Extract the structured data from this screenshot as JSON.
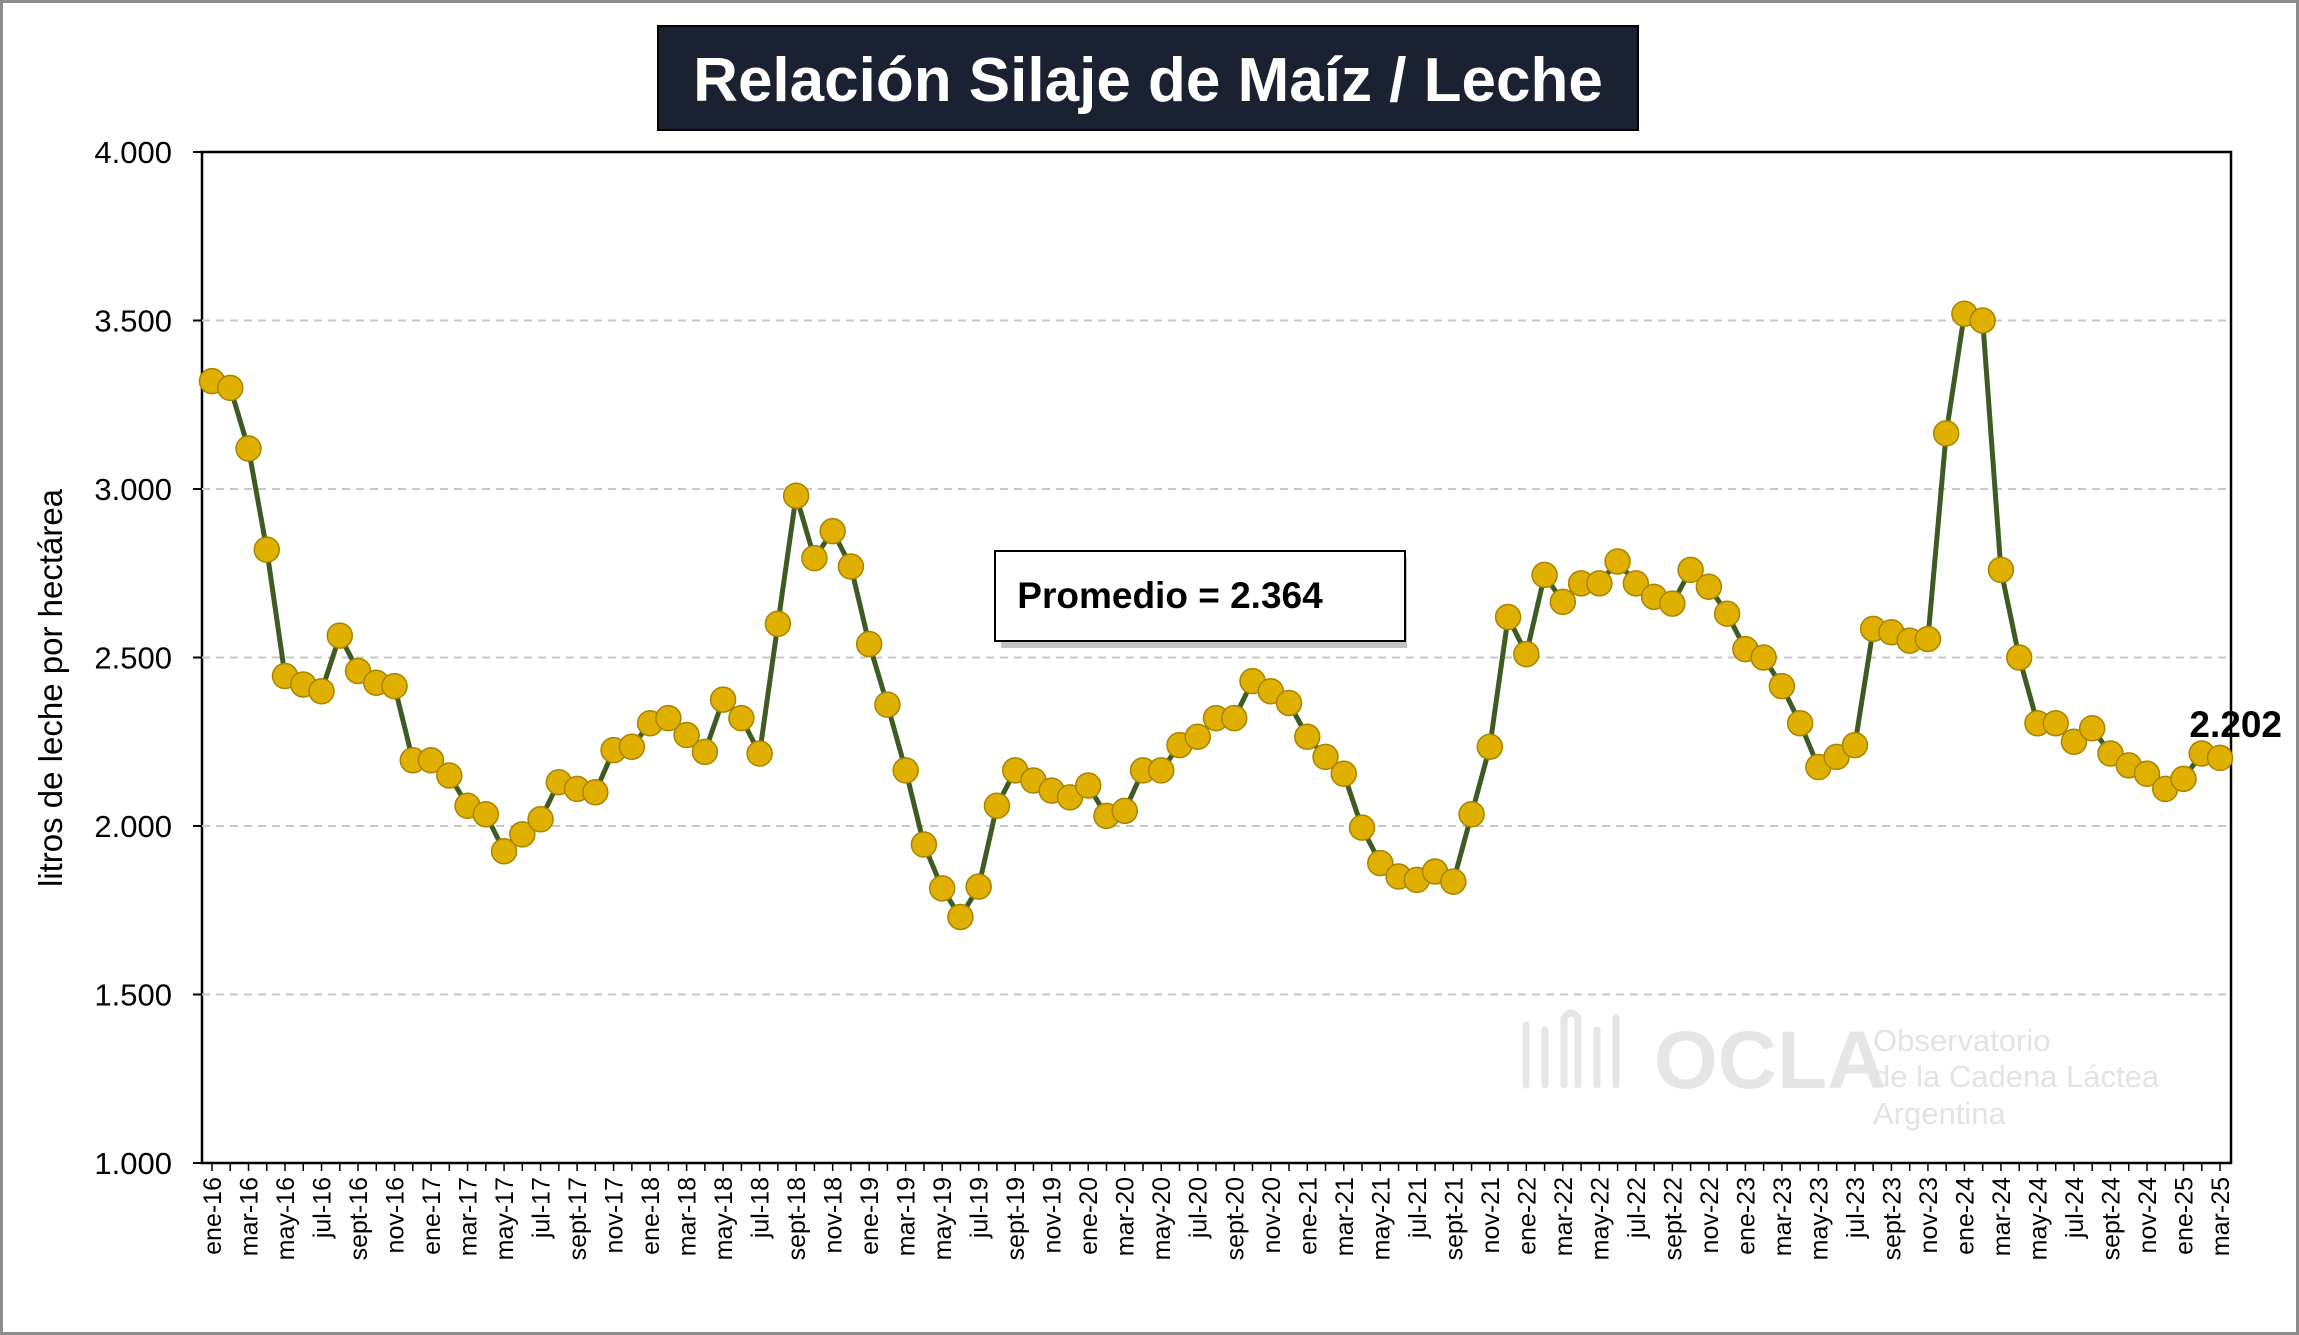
{
  "chart_data": {
    "type": "line",
    "title": "Relación Silaje de Maíz / Leche",
    "ylabel": "litros de leche por hectárea",
    "ylim": [
      1000,
      4000
    ],
    "yticks": [
      1000,
      1500,
      2000,
      2500,
      3000,
      3500,
      4000
    ],
    "ytick_labels": [
      "1.000",
      "1.500",
      "2.000",
      "2.500",
      "3.000",
      "3.500",
      "4.000"
    ],
    "grid": "horizontal dashed",
    "line_color": "#3d5c22",
    "marker_color": "#e0b000",
    "x": [
      "ene-16",
      "feb-16",
      "mar-16",
      "abr-16",
      "may-16",
      "jun-16",
      "jul-16",
      "ago-16",
      "sept-16",
      "oct-16",
      "nov-16",
      "dic-16",
      "ene-17",
      "feb-17",
      "mar-17",
      "abr-17",
      "may-17",
      "jun-17",
      "jul-17",
      "ago-17",
      "sept-17",
      "oct-17",
      "nov-17",
      "dic-17",
      "ene-18",
      "feb-18",
      "mar-18",
      "abr-18",
      "may-18",
      "jun-18",
      "jul-18",
      "ago-18",
      "sept-18",
      "oct-18",
      "nov-18",
      "dic-18",
      "ene-19",
      "feb-19",
      "mar-19",
      "abr-19",
      "may-19",
      "jun-19",
      "jul-19",
      "ago-19",
      "sept-19",
      "oct-19",
      "nov-19",
      "dic-19",
      "ene-20",
      "feb-20",
      "mar-20",
      "abr-20",
      "may-20",
      "jun-20",
      "jul-20",
      "ago-20",
      "sept-20",
      "oct-20",
      "nov-20",
      "dic-20",
      "ene-21",
      "feb-21",
      "mar-21",
      "abr-21",
      "may-21",
      "jun-21",
      "jul-21",
      "ago-21",
      "sept-21",
      "oct-21",
      "nov-21",
      "dic-21",
      "ene-22",
      "feb-22",
      "mar-22",
      "abr-22",
      "may-22",
      "jun-22",
      "jul-22",
      "ago-22",
      "sept-22",
      "oct-22",
      "nov-22",
      "dic-22",
      "ene-23",
      "feb-23",
      "mar-23",
      "abr-23",
      "may-23",
      "jun-23",
      "jul-23",
      "ago-23",
      "sept-23",
      "oct-23",
      "nov-23",
      "dic-23",
      "ene-24",
      "feb-24",
      "mar-24",
      "abr-24",
      "may-24",
      "jun-24",
      "jul-24",
      "ago-24",
      "sept-24",
      "oct-24",
      "nov-24",
      "dic-24",
      "ene-25",
      "feb-25",
      "mar-25"
    ],
    "xtick_labels_shown": [
      "ene-16",
      "mar-16",
      "may-16",
      "jul-16",
      "sept-16",
      "nov-16",
      "ene-17",
      "mar-17",
      "may-17",
      "jul-17",
      "sept-17",
      "nov-17",
      "ene-18",
      "mar-18",
      "may-18",
      "jul-18",
      "sept-18",
      "nov-18",
      "ene-19",
      "mar-19",
      "may-19",
      "jul-19",
      "sept-19",
      "nov-19",
      "ene-20",
      "mar-20",
      "may-20",
      "jul-20",
      "sept-20",
      "nov-20",
      "ene-21",
      "mar-21",
      "may-21",
      "jul-21",
      "sept-21",
      "nov-21",
      "ene-22",
      "mar-22",
      "may-22",
      "jul-22",
      "sept-22",
      "nov-22",
      "ene-23",
      "mar-23",
      "may-23",
      "jul-23",
      "sept-23",
      "nov-23",
      "ene-24",
      "mar-24",
      "may-24",
      "jul-24",
      "sept-24",
      "nov-24",
      "ene-25",
      "mar-25"
    ],
    "series": [
      {
        "values": [
          3320,
          3300,
          3120,
          2820,
          2445,
          2420,
          2400,
          2565,
          2460,
          2425,
          2415,
          2195,
          2195,
          2150,
          2060,
          2035,
          1925,
          1975,
          2020,
          2130,
          2110,
          2100,
          2225,
          2235,
          2305,
          2320,
          2270,
          2220,
          2375,
          2320,
          2215,
          2600,
          2980,
          2795,
          2875,
          2770,
          2540,
          2360,
          2165,
          1945,
          1815,
          1730,
          1820,
          2060,
          2165,
          2135,
          2105,
          2085,
          2120,
          2030,
          2045,
          2165,
          2165,
          2240,
          2265,
          2320,
          2320,
          2430,
          2400,
          2365,
          2265,
          2205,
          2155,
          1995,
          1890,
          1850,
          1840,
          1865,
          1835,
          2035,
          2235,
          2620,
          2510,
          2745,
          2665,
          2720,
          2720,
          2785,
          2720,
          2680,
          2660,
          2760,
          2710,
          2630,
          2525,
          2500,
          2415,
          2305,
          2175,
          2205,
          2240,
          2585,
          2575,
          2550,
          2555,
          3165,
          3520,
          3500,
          2760,
          2500,
          2305,
          2305,
          2250,
          2290,
          2215,
          2180,
          2155,
          2110,
          2140,
          2215,
          2202
        ]
      }
    ],
    "annotations": {
      "average_label": "Promedio = 2.364",
      "last_value_label": "2.202"
    },
    "watermark": {
      "brand": "OCLA",
      "line1": "Observatorio",
      "line2": "de la Cadena Láctea",
      "line3": "Argentina"
    }
  }
}
